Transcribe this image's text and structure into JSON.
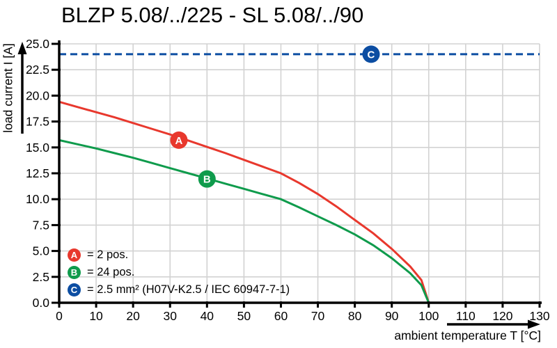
{
  "title": "BLZP 5.08/../225 - SL 5.08/../90",
  "chart_data": {
    "type": "line",
    "title": "BLZP 5.08/../225 - SL 5.08/../90",
    "xlabel": "ambient temperature T [°C]",
    "ylabel": "load current I [A]",
    "xlim": [
      0,
      130
    ],
    "ylim": [
      0,
      25
    ],
    "grid": true,
    "legend_position": "bottom-left-inside",
    "x_ticks": [
      0,
      10,
      20,
      30,
      40,
      50,
      60,
      70,
      80,
      90,
      100,
      110,
      120,
      130
    ],
    "x_tick_labels": [
      "0",
      "10",
      "20",
      "30",
      "40",
      "50",
      "60",
      "70",
      "80",
      "90",
      "100",
      "110",
      "120",
      "130"
    ],
    "y_ticks": [
      0,
      2.5,
      5,
      7.5,
      10,
      12.5,
      15,
      17.5,
      20,
      22.5,
      25
    ],
    "y_tick_labels": [
      "0.0",
      "2.5",
      "5.0",
      "7.5",
      "10.0",
      "12.5",
      "15.0",
      "17.5",
      "20.0",
      "22.5",
      "25.0"
    ],
    "colors": {
      "grid": "#d2d2d2",
      "axis": "#000000"
    },
    "series": [
      {
        "name": "A",
        "label": "= 2 pos.",
        "color": "#e8382d",
        "style": "solid",
        "marker": {
          "x": 32.4,
          "y": 15.7
        },
        "points": [
          [
            0,
            19.4
          ],
          [
            5,
            18.9
          ],
          [
            10,
            18.4
          ],
          [
            15,
            17.9
          ],
          [
            20,
            17.35
          ],
          [
            25,
            16.8
          ],
          [
            30,
            16.25
          ],
          [
            35,
            15.65
          ],
          [
            40,
            15.05
          ],
          [
            45,
            14.45
          ],
          [
            50,
            13.8
          ],
          [
            55,
            13.15
          ],
          [
            60,
            12.5
          ],
          [
            65,
            11.55
          ],
          [
            70,
            10.5
          ],
          [
            75,
            9.3
          ],
          [
            80,
            8.0
          ],
          [
            85,
            6.7
          ],
          [
            90,
            5.2
          ],
          [
            95,
            3.5
          ],
          [
            98,
            2.2
          ],
          [
            100,
            0
          ]
        ]
      },
      {
        "name": "B",
        "label": "= 24 pos.",
        "color": "#0f9b4c",
        "style": "solid",
        "marker": {
          "x": 40,
          "y": 11.95
        },
        "points": [
          [
            0,
            15.7
          ],
          [
            5,
            15.3
          ],
          [
            10,
            14.9
          ],
          [
            15,
            14.45
          ],
          [
            20,
            14.0
          ],
          [
            25,
            13.5
          ],
          [
            30,
            13.0
          ],
          [
            35,
            12.5
          ],
          [
            40,
            12.0
          ],
          [
            45,
            11.5
          ],
          [
            50,
            11.0
          ],
          [
            55,
            10.5
          ],
          [
            60,
            10.0
          ],
          [
            65,
            9.2
          ],
          [
            70,
            8.35
          ],
          [
            75,
            7.5
          ],
          [
            80,
            6.6
          ],
          [
            85,
            5.55
          ],
          [
            90,
            4.3
          ],
          [
            95,
            2.85
          ],
          [
            98,
            1.7
          ],
          [
            100,
            0
          ]
        ]
      },
      {
        "name": "C",
        "label": "= 2.5 mm² (H07V-K2.5 / IEC 60947-7-1)",
        "color": "#0c4da2",
        "style": "dashed",
        "marker": {
          "x": 84.4,
          "y": 24
        },
        "points": [
          [
            0,
            24
          ],
          [
            130,
            24
          ]
        ]
      }
    ]
  }
}
